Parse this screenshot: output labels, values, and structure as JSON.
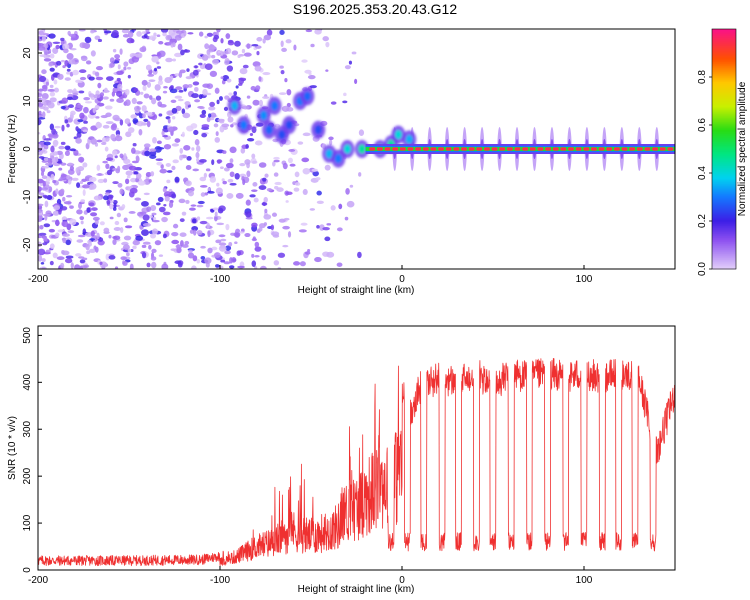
{
  "chart_data": [
    {
      "type": "heatmap",
      "title": "S196.2025.353.20.43.G12",
      "xlabel": "Height of straight line (km)",
      "ylabel": "Frequency (Hz)",
      "xlim": [
        -200,
        150
      ],
      "ylim": [
        -25,
        25
      ],
      "x_ticks": [
        -200,
        -100,
        0,
        100
      ],
      "x_tick_labels": [
        "-200",
        "-100",
        "0",
        "100"
      ],
      "y_ticks": [
        -20,
        -10,
        0,
        10,
        20
      ],
      "y_tick_labels": [
        "-20",
        "-10",
        "0",
        "10",
        "20"
      ],
      "colorbar": {
        "label": "Normalized spectral amplitude",
        "range": [
          0,
          1
        ],
        "ticks": [
          0.0,
          0.2,
          0.4,
          0.6,
          0.8
        ],
        "tick_labels": [
          "0.0",
          "0.2",
          "0.4",
          "0.6",
          "0.8"
        ],
        "colormap": "rainbow"
      },
      "ridge": {
        "description": "dominant spectral line",
        "x_start": -20,
        "x_end": 150,
        "frequency_hz": 0,
        "amplitude": 0.95
      },
      "blobs": [
        {
          "x": -92,
          "y": 9,
          "amp": 0.35
        },
        {
          "x": -87,
          "y": 5,
          "amp": 0.3
        },
        {
          "x": -76,
          "y": 7,
          "amp": 0.32
        },
        {
          "x": -73,
          "y": 4,
          "amp": 0.28
        },
        {
          "x": -70,
          "y": 9,
          "amp": 0.3
        },
        {
          "x": -66,
          "y": 3,
          "amp": 0.25
        },
        {
          "x": -62,
          "y": 5,
          "amp": 0.25
        },
        {
          "x": -56,
          "y": 10,
          "amp": 0.3
        },
        {
          "x": -52,
          "y": 11,
          "amp": 0.28
        },
        {
          "x": -46,
          "y": 4,
          "amp": 0.25
        },
        {
          "x": -40,
          "y": -1,
          "amp": 0.35
        },
        {
          "x": -35,
          "y": -2,
          "amp": 0.3
        },
        {
          "x": -30,
          "y": 0,
          "amp": 0.4
        },
        {
          "x": -22,
          "y": 0,
          "amp": 0.45
        },
        {
          "x": -12,
          "y": 0,
          "amp": 0.5
        },
        {
          "x": -6,
          "y": 1,
          "amp": 0.45
        },
        {
          "x": -2,
          "y": 3,
          "amp": 0.4
        },
        {
          "x": 4,
          "y": 2,
          "amp": 0.35
        }
      ]
    },
    {
      "type": "line",
      "xlabel": "Height of straight line (km)",
      "ylabel": "SNR (10 * v/v)",
      "xlim": [
        -200,
        150
      ],
      "ylim": [
        0,
        520
      ],
      "x_ticks": [
        -200,
        -100,
        0,
        100
      ],
      "x_tick_labels": [
        "-200",
        "-100",
        "0",
        "100"
      ],
      "y_ticks": [
        0,
        100,
        200,
        300,
        400,
        500
      ],
      "y_tick_labels": [
        "0",
        "100",
        "200",
        "300",
        "400",
        "500"
      ],
      "color": "#ef3030",
      "envelope": {
        "x": [
          -200,
          -150,
          -110,
          -100,
          -90,
          -80,
          -70,
          -60,
          -50,
          -40,
          -35,
          -30,
          -25,
          -20,
          -15,
          -10,
          -5,
          0,
          5,
          10,
          20,
          30,
          40,
          50,
          60,
          70,
          80,
          90,
          100,
          110,
          120,
          130,
          140,
          150
        ],
        "y": [
          20,
          20,
          22,
          30,
          55,
          90,
          110,
          150,
          130,
          150,
          170,
          230,
          240,
          280,
          310,
          340,
          350,
          380,
          340,
          390,
          410,
          400,
          420,
          390,
          420,
          410,
          420,
          410,
          420,
          410,
          420,
          410,
          250,
          380
        ]
      },
      "dips": [
        -6,
        3,
        12,
        22,
        31,
        41,
        50,
        60,
        70,
        80,
        90,
        100,
        110,
        119,
        128,
        138
      ]
    }
  ]
}
